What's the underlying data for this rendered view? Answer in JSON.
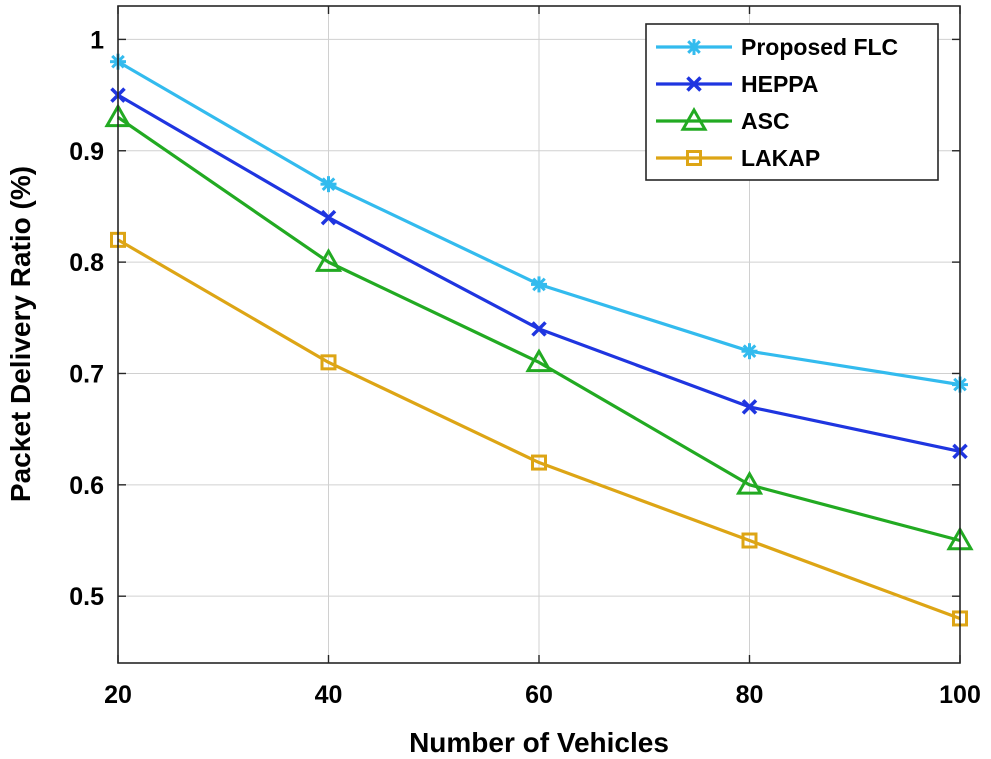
{
  "chart_data": {
    "type": "line",
    "title": "",
    "xlabel": "Number of Vehicles",
    "ylabel": "Packet Delivery Ratio (%)",
    "x": [
      20,
      40,
      60,
      80,
      100
    ],
    "x_ticks": [
      20,
      40,
      60,
      80,
      100
    ],
    "y_ticks": [
      0.5,
      0.6,
      0.7,
      0.8,
      0.9,
      1
    ],
    "y_tick_labels": [
      "0.5",
      "0.6",
      "0.7",
      "0.8",
      "0.9",
      "1"
    ],
    "xlim": [
      20,
      100
    ],
    "ylim": [
      0.44,
      1.03
    ],
    "grid": true,
    "legend_position": "top-right",
    "series": [
      {
        "name": "Proposed FLC",
        "color": "#33BBEE",
        "marker": "asterisk",
        "values": [
          0.98,
          0.87,
          0.78,
          0.72,
          0.69
        ]
      },
      {
        "name": "HEPPA",
        "color": "#1F35E0",
        "marker": "x",
        "values": [
          0.95,
          0.84,
          0.74,
          0.67,
          0.63
        ]
      },
      {
        "name": "ASC",
        "color": "#22AA22",
        "marker": "triangle",
        "values": [
          0.93,
          0.8,
          0.71,
          0.6,
          0.55
        ]
      },
      {
        "name": "LAKAP",
        "color": "#DDA515",
        "marker": "square",
        "values": [
          0.82,
          0.71,
          0.62,
          0.55,
          0.48
        ]
      }
    ]
  }
}
